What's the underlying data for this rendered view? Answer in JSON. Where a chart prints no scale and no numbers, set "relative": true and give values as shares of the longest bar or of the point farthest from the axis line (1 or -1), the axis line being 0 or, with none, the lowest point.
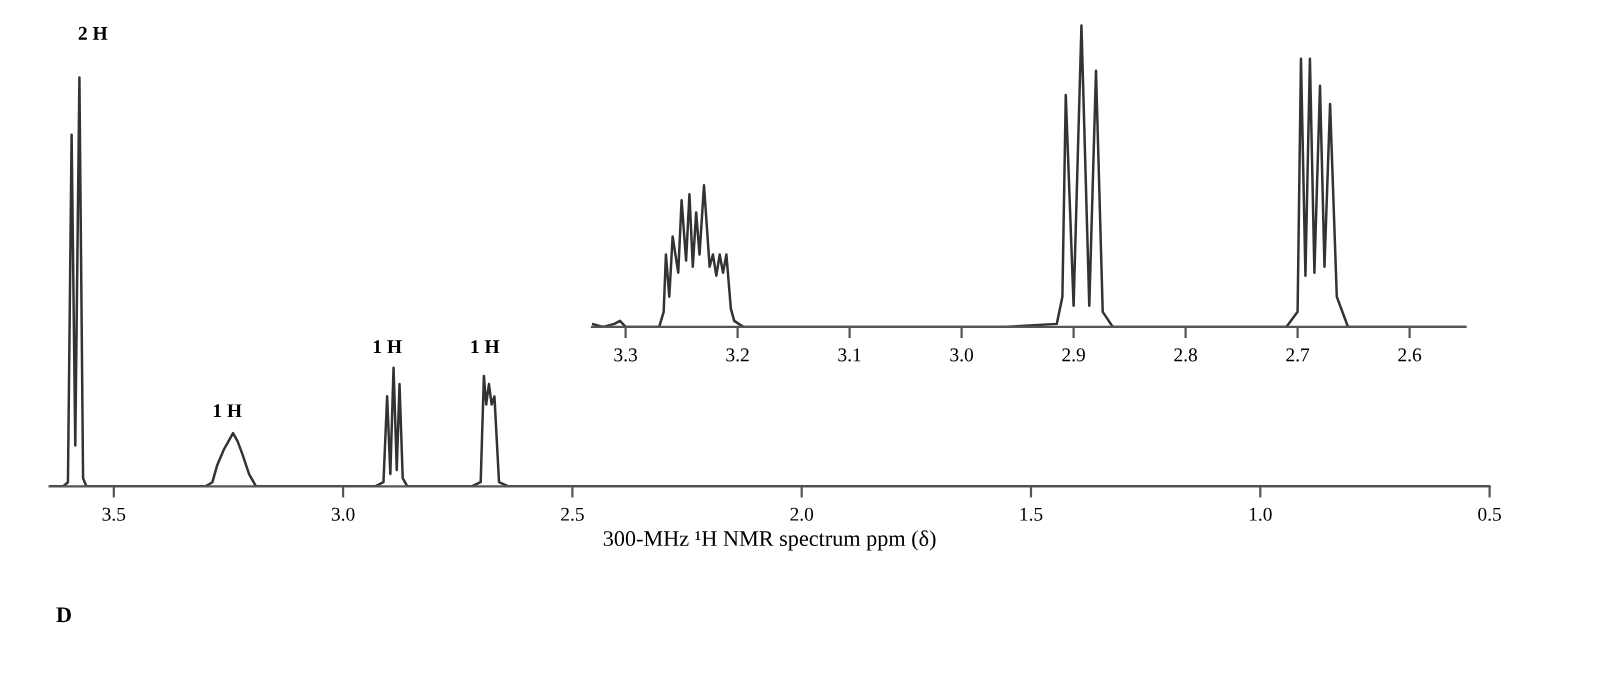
{
  "chart_data": [
    {
      "type": "line",
      "relative": true,
      "xlabel": "300-MHz ¹H NMR spectrum ppm (δ)",
      "xlim": [
        3.64,
        0.5
      ],
      "xticks": [
        3.5,
        {
          "value": 3,
          "label": "3.0"
        },
        2.5,
        {
          "value": 2,
          "label": "2.0"
        },
        1.5,
        {
          "value": 1,
          "label": "1.0"
        },
        0.5
      ],
      "tick_labels": "x",
      "grid": false,
      "legend": false,
      "marker": "none",
      "line_style": "solid",
      "annotations": [
        "2 H",
        "1 H",
        "1 H",
        "1 H",
        "D"
      ],
      "series": [
        {
          "color": "#333333",
          "x": [
            3.64,
            3.61,
            3.6,
            3.592,
            3.584,
            3.575,
            3.567,
            3.56,
            3.54,
            3.3,
            3.285,
            3.275,
            3.26,
            3.25,
            3.24,
            3.23,
            3.22,
            3.205,
            3.19,
            2.93,
            2.912,
            2.904,
            2.897,
            2.89,
            2.883,
            2.877,
            2.87,
            2.86,
            2.72,
            2.7,
            2.693,
            2.688,
            2.682,
            2.676,
            2.67,
            2.66,
            2.64,
            0.5
          ],
          "values": [
            0,
            0,
            0.01,
            0.86,
            0.1,
            1.0,
            0.02,
            0,
            0,
            0,
            0.01,
            0.05,
            0.09,
            0.11,
            0.13,
            0.11,
            0.08,
            0.03,
            0,
            0,
            0.01,
            0.22,
            0.03,
            0.29,
            0.04,
            0.25,
            0.02,
            0,
            0,
            0.01,
            0.27,
            0.2,
            0.25,
            0.2,
            0.22,
            0.01,
            0,
            0
          ]
        }
      ]
    },
    {
      "type": "line",
      "relative": true,
      "xlim": [
        3.33,
        2.55
      ],
      "xticks": [
        3.3,
        3.2,
        3.1,
        {
          "value": 3,
          "label": "3.0"
        },
        2.9,
        2.8,
        2.7,
        2.6
      ],
      "tick_labels": "x",
      "grid": false,
      "legend": false,
      "marker": "none",
      "line_style": "solid",
      "series": [
        {
          "color": "#333333",
          "x": [
            3.33,
            3.32,
            3.31,
            3.305,
            3.3,
            3.29,
            3.27,
            3.266,
            3.264,
            3.261,
            3.258,
            3.253,
            3.25,
            3.246,
            3.243,
            3.24,
            3.237,
            3.234,
            3.23,
            3.225,
            3.222,
            3.219,
            3.216,
            3.213,
            3.21,
            3.206,
            3.203,
            3.195,
            3.1,
            2.96,
            2.915,
            2.91,
            2.907,
            2.9,
            2.893,
            2.886,
            2.88,
            2.874,
            2.865,
            2.71,
            2.7,
            2.697,
            2.693,
            2.689,
            2.685,
            2.68,
            2.676,
            2.671,
            2.665,
            2.655,
            2.55
          ],
          "values": [
            0.01,
            0,
            0.01,
            0.02,
            0,
            0,
            0,
            0.05,
            0.24,
            0.1,
            0.3,
            0.18,
            0.42,
            0.22,
            0.44,
            0.2,
            0.38,
            0.24,
            0.47,
            0.2,
            0.24,
            0.17,
            0.24,
            0.18,
            0.24,
            0.06,
            0.02,
            0,
            0,
            0,
            0.01,
            0.1,
            0.77,
            0.07,
            1.0,
            0.07,
            0.85,
            0.05,
            0,
            0,
            0.05,
            0.89,
            0.17,
            0.89,
            0.18,
            0.8,
            0.2,
            0.74,
            0.1,
            0,
            0
          ]
        }
      ]
    }
  ]
}
